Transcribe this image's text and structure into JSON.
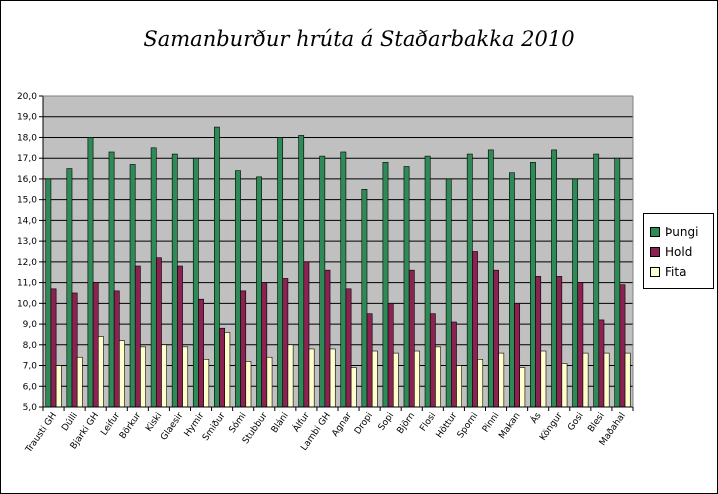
{
  "chart_data": {
    "type": "bar",
    "title": "Samanburður hrúta á Staðarbakka 2010",
    "xlabel": "",
    "ylabel": "",
    "ylim": [
      5,
      20
    ],
    "y_ticks": [
      "5,0",
      "6,0",
      "7,0",
      "8,0",
      "9,0",
      "10,0",
      "11,0",
      "12,0",
      "13,0",
      "14,0",
      "15,0",
      "16,0",
      "17,0",
      "18,0",
      "19,0",
      "20,0"
    ],
    "grid": true,
    "legend_position": "right",
    "categories": [
      "Trausti GH",
      "Dúlli",
      "Bjarki GH",
      "Leifur",
      "Börkur",
      "Kiski",
      "Glaesir",
      "Hymir",
      "Smiður",
      "Sómi",
      "Stubbur",
      "Bláni",
      "Álfur",
      "Lambi GH",
      "Agnar",
      "Dropi",
      "Sopi",
      "Björn",
      "Flosi",
      "Höttur",
      "Sporni",
      "Pinni",
      "Makan",
      "Ás",
      "Köngur",
      "Gosi",
      "Blesi",
      "Maðahal"
    ],
    "series": [
      {
        "name": "Þungi",
        "color": "#2e8b57",
        "values": [
          16.0,
          16.5,
          18.0,
          17.3,
          16.7,
          17.5,
          17.2,
          17.0,
          18.5,
          16.4,
          16.1,
          18.0,
          18.1,
          17.1,
          17.3,
          15.5,
          16.8,
          16.6,
          17.1,
          16.0,
          17.2,
          17.4,
          16.3,
          16.8,
          17.4,
          16.0,
          17.2,
          17.0
        ]
      },
      {
        "name": "Hold",
        "color": "#8b2252",
        "values": [
          10.7,
          10.5,
          11.0,
          10.6,
          11.8,
          12.2,
          11.8,
          10.2,
          8.8,
          10.6,
          11.0,
          11.2,
          12.0,
          11.6,
          10.7,
          9.5,
          10.0,
          11.6,
          9.5,
          9.1,
          12.5,
          11.6,
          10.0,
          11.3,
          11.3,
          11.0,
          9.2,
          10.9
        ]
      },
      {
        "name": "Fita",
        "color": "#ffffcc",
        "values": [
          7.0,
          7.4,
          8.4,
          8.2,
          7.9,
          8.0,
          7.9,
          7.3,
          8.6,
          7.2,
          7.4,
          8.0,
          7.8,
          7.8,
          6.9,
          7.7,
          7.6,
          7.7,
          7.9,
          7.0,
          7.3,
          7.6,
          6.9,
          7.7,
          7.1,
          7.6,
          7.6,
          7.6
        ]
      }
    ]
  }
}
